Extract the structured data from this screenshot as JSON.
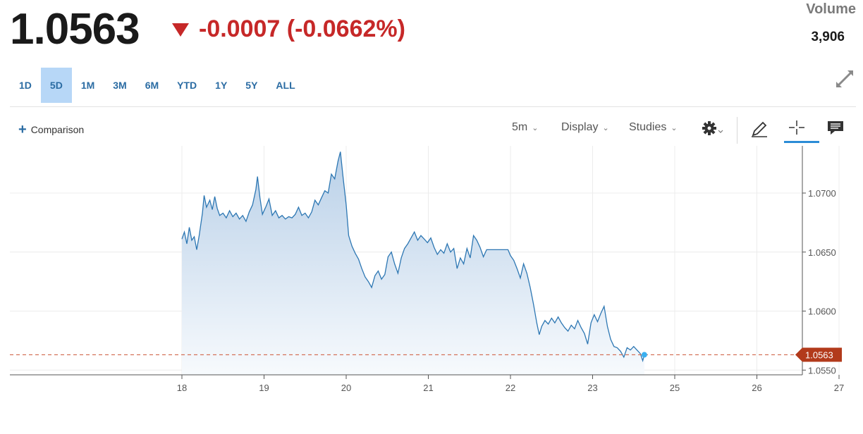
{
  "quote": {
    "price": "1.0563",
    "change": "-0.0007 (-0.0662%)",
    "volume_label": "Volume",
    "volume_value": "3,906"
  },
  "ranges": [
    {
      "label": "1D",
      "active": false
    },
    {
      "label": "5D",
      "active": true
    },
    {
      "label": "1M",
      "active": false
    },
    {
      "label": "3M",
      "active": false
    },
    {
      "label": "6M",
      "active": false
    },
    {
      "label": "YTD",
      "active": false
    },
    {
      "label": "1Y",
      "active": false
    },
    {
      "label": "5Y",
      "active": false
    },
    {
      "label": "ALL",
      "active": false
    }
  ],
  "toolbar": {
    "comparison_label": "Comparison",
    "interval_label": "5m",
    "display_label": "Display",
    "studies_label": "Studies"
  },
  "icons": {
    "expand": "expand-icon",
    "settings": "gear-icon",
    "draw": "pencil-icon",
    "crosshair": "crosshair-icon",
    "comment": "comment-icon"
  },
  "colors": {
    "line": "#2d77b3",
    "fill_top": "#b9d0e8",
    "fill_bottom": "#f7fafd",
    "negative": "#c62828",
    "last_price_tag": "#b23a1b",
    "accent": "#2b8cd6",
    "last_point": "#3ab0f0"
  },
  "chart_data": {
    "type": "area",
    "x_ticks": [
      "18",
      "19",
      "20",
      "21",
      "22",
      "23",
      "25",
      "26",
      "27"
    ],
    "y_ticks": [
      "1.0700",
      "1.0650",
      "1.0600",
      "1.0550"
    ],
    "ylim": [
      1.0546,
      1.074
    ],
    "last_price": 1.0563,
    "last_price_label": "1.0563",
    "grid": true,
    "points": [
      [
        0.0,
        1.0661
      ],
      [
        0.03,
        1.0667
      ],
      [
        0.06,
        1.0657
      ],
      [
        0.09,
        1.0671
      ],
      [
        0.12,
        1.066
      ],
      [
        0.15,
        1.0663
      ],
      [
        0.18,
        1.0652
      ],
      [
        0.21,
        1.0664
      ],
      [
        0.25,
        1.0683
      ],
      [
        0.27,
        1.0698
      ],
      [
        0.3,
        1.0688
      ],
      [
        0.34,
        1.0694
      ],
      [
        0.37,
        1.0686
      ],
      [
        0.4,
        1.0697
      ],
      [
        0.43,
        1.0687
      ],
      [
        0.46,
        1.0681
      ],
      [
        0.5,
        1.0683
      ],
      [
        0.54,
        1.0679
      ],
      [
        0.58,
        1.0685
      ],
      [
        0.62,
        1.068
      ],
      [
        0.66,
        1.0683
      ],
      [
        0.7,
        1.0678
      ],
      [
        0.74,
        1.0681
      ],
      [
        0.78,
        1.0676
      ],
      [
        0.82,
        1.0684
      ],
      [
        0.86,
        1.069
      ],
      [
        0.9,
        1.0703
      ],
      [
        0.92,
        1.0714
      ],
      [
        0.95,
        1.0696
      ],
      [
        0.98,
        1.0682
      ],
      [
        1.02,
        1.0688
      ],
      [
        1.06,
        1.0695
      ],
      [
        1.1,
        1.0681
      ],
      [
        1.14,
        1.0685
      ],
      [
        1.18,
        1.0679
      ],
      [
        1.22,
        1.0681
      ],
      [
        1.26,
        1.0678
      ],
      [
        1.3,
        1.068
      ],
      [
        1.34,
        1.0679
      ],
      [
        1.38,
        1.0682
      ],
      [
        1.42,
        1.0688
      ],
      [
        1.46,
        1.0681
      ],
      [
        1.5,
        1.0683
      ],
      [
        1.54,
        1.0679
      ],
      [
        1.58,
        1.0684
      ],
      [
        1.62,
        1.0694
      ],
      [
        1.66,
        1.069
      ],
      [
        1.7,
        1.0696
      ],
      [
        1.74,
        1.0702
      ],
      [
        1.78,
        1.07
      ],
      [
        1.82,
        1.0716
      ],
      [
        1.86,
        1.0712
      ],
      [
        1.9,
        1.0727
      ],
      [
        1.93,
        1.0735
      ],
      [
        1.96,
        1.0715
      ],
      [
        2.0,
        1.069
      ],
      [
        2.03,
        1.0664
      ],
      [
        2.07,
        1.0655
      ],
      [
        2.11,
        1.0649
      ],
      [
        2.15,
        1.0644
      ],
      [
        2.19,
        1.0636
      ],
      [
        2.23,
        1.0629
      ],
      [
        2.27,
        1.0625
      ],
      [
        2.31,
        1.062
      ],
      [
        2.35,
        1.063
      ],
      [
        2.39,
        1.0634
      ],
      [
        2.43,
        1.0627
      ],
      [
        2.47,
        1.0631
      ],
      [
        2.51,
        1.0646
      ],
      [
        2.55,
        1.065
      ],
      [
        2.59,
        1.064
      ],
      [
        2.63,
        1.0632
      ],
      [
        2.67,
        1.0645
      ],
      [
        2.71,
        1.0653
      ],
      [
        2.75,
        1.0657
      ],
      [
        2.79,
        1.0662
      ],
      [
        2.83,
        1.0667
      ],
      [
        2.87,
        1.066
      ],
      [
        2.91,
        1.0664
      ],
      [
        2.95,
        1.0661
      ],
      [
        2.99,
        1.0658
      ],
      [
        3.03,
        1.0662
      ],
      [
        3.07,
        1.0654
      ],
      [
        3.11,
        1.0648
      ],
      [
        3.15,
        1.0652
      ],
      [
        3.19,
        1.0649
      ],
      [
        3.23,
        1.0657
      ],
      [
        3.27,
        1.065
      ],
      [
        3.31,
        1.0653
      ],
      [
        3.35,
        1.0636
      ],
      [
        3.39,
        1.0645
      ],
      [
        3.43,
        1.064
      ],
      [
        3.47,
        1.0653
      ],
      [
        3.51,
        1.0645
      ],
      [
        3.55,
        1.0664
      ],
      [
        3.59,
        1.066
      ],
      [
        3.63,
        1.0654
      ],
      [
        3.67,
        1.0646
      ],
      [
        3.71,
        1.0652
      ],
      [
        3.75,
        1.0652
      ],
      [
        3.8,
        1.0652
      ],
      [
        3.86,
        1.0652
      ],
      [
        3.92,
        1.0652
      ],
      [
        3.97,
        1.0652
      ],
      [
        4.0,
        1.0647
      ],
      [
        4.04,
        1.0643
      ],
      [
        4.08,
        1.0636
      ],
      [
        4.12,
        1.0628
      ],
      [
        4.16,
        1.064
      ],
      [
        4.2,
        1.0632
      ],
      [
        4.24,
        1.062
      ],
      [
        4.28,
        1.0606
      ],
      [
        4.32,
        1.059
      ],
      [
        4.35,
        1.058
      ],
      [
        4.38,
        1.0587
      ],
      [
        4.42,
        1.0592
      ],
      [
        4.46,
        1.0589
      ],
      [
        4.5,
        1.0594
      ],
      [
        4.54,
        1.059
      ],
      [
        4.58,
        1.0595
      ],
      [
        4.62,
        1.059
      ],
      [
        4.66,
        1.0586
      ],
      [
        4.7,
        1.0583
      ],
      [
        4.74,
        1.0588
      ],
      [
        4.78,
        1.0585
      ],
      [
        4.82,
        1.0592
      ],
      [
        4.86,
        1.0586
      ],
      [
        4.9,
        1.0581
      ],
      [
        4.94,
        1.0572
      ],
      [
        4.98,
        1.059
      ],
      [
        5.02,
        1.0597
      ],
      [
        5.06,
        1.0591
      ],
      [
        5.1,
        1.0598
      ],
      [
        5.14,
        1.0604
      ],
      [
        5.18,
        1.0587
      ],
      [
        5.22,
        1.0576
      ],
      [
        5.26,
        1.057
      ],
      [
        5.3,
        1.0569
      ],
      [
        5.34,
        1.0566
      ],
      [
        5.38,
        1.0561
      ],
      [
        5.42,
        1.0569
      ],
      [
        5.46,
        1.0567
      ],
      [
        5.5,
        1.057
      ],
      [
        5.54,
        1.0567
      ],
      [
        5.58,
        1.0564
      ],
      [
        5.61,
        1.0558
      ],
      [
        5.63,
        1.0563
      ]
    ]
  }
}
